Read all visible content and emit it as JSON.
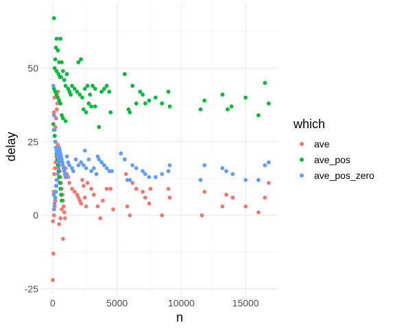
{
  "chart_data": {
    "type": "scatter",
    "xlabel": "n",
    "ylabel": "delay",
    "xlim": [
      -900,
      17500
    ],
    "ylim": [
      -27,
      72
    ],
    "x_ticks": [
      0,
      5000,
      10000,
      15000
    ],
    "x_tick_labels": [
      "0",
      "5000",
      "10000",
      "15000"
    ],
    "y_ticks": [
      -25,
      0,
      25,
      50
    ],
    "y_tick_labels": [
      "-25",
      "0",
      "25",
      "50"
    ],
    "grid": true,
    "legend": {
      "title": "which",
      "position": "right"
    },
    "series": [
      {
        "name": "ave",
        "color": "#F8766D",
        "points": [
          [
            0,
            -22
          ],
          [
            50,
            -13
          ],
          [
            20,
            -2
          ],
          [
            100,
            0
          ],
          [
            150,
            3
          ],
          [
            200,
            5
          ],
          [
            80,
            8
          ],
          [
            250,
            10
          ],
          [
            300,
            12
          ],
          [
            120,
            14
          ],
          [
            180,
            16
          ],
          [
            220,
            18
          ],
          [
            280,
            20
          ],
          [
            350,
            22
          ],
          [
            400,
            24
          ],
          [
            160,
            27
          ],
          [
            210,
            30
          ],
          [
            260,
            33
          ],
          [
            310,
            36
          ],
          [
            360,
            38
          ],
          [
            410,
            42
          ],
          [
            90,
            35
          ],
          [
            140,
            40
          ],
          [
            450,
            19
          ],
          [
            500,
            17
          ],
          [
            550,
            15
          ],
          [
            600,
            13
          ],
          [
            650,
            11
          ],
          [
            700,
            9
          ],
          [
            750,
            7
          ],
          [
            800,
            5
          ],
          [
            850,
            3
          ],
          [
            900,
            1
          ],
          [
            950,
            -1
          ],
          [
            800,
            -8
          ],
          [
            500,
            -3
          ],
          [
            600,
            -1
          ],
          [
            700,
            2
          ],
          [
            1000,
            16
          ],
          [
            1100,
            14
          ],
          [
            1200,
            13
          ],
          [
            1300,
            11
          ],
          [
            1500,
            9
          ],
          [
            1700,
            8
          ],
          [
            1900,
            7
          ],
          [
            2000,
            6
          ],
          [
            2100,
            5
          ],
          [
            2200,
            4
          ],
          [
            2300,
            12
          ],
          [
            2400,
            10
          ],
          [
            2500,
            6
          ],
          [
            2600,
            3
          ],
          [
            2700,
            11
          ],
          [
            3000,
            9
          ],
          [
            3200,
            7
          ],
          [
            3500,
            3
          ],
          [
            3700,
            -1
          ],
          [
            3900,
            5
          ],
          [
            4200,
            9
          ],
          [
            4500,
            9
          ],
          [
            4700,
            2
          ],
          [
            5700,
            14
          ],
          [
            5800,
            3
          ],
          [
            6000,
            0
          ],
          [
            6200,
            11
          ],
          [
            6500,
            9
          ],
          [
            7000,
            8
          ],
          [
            7200,
            6
          ],
          [
            7500,
            4
          ],
          [
            7600,
            9
          ],
          [
            8500,
            0
          ],
          [
            9000,
            9
          ],
          [
            9100,
            6
          ],
          [
            11600,
            0
          ],
          [
            11800,
            8
          ],
          [
            13200,
            3
          ],
          [
            13500,
            7
          ],
          [
            14000,
            6
          ],
          [
            15000,
            3
          ],
          [
            16000,
            1
          ],
          [
            16500,
            6
          ],
          [
            16800,
            11
          ]
        ]
      },
      {
        "name": "ave_pos",
        "color": "#00BA38",
        "points": [
          [
            100,
            67
          ],
          [
            300,
            60
          ],
          [
            600,
            60
          ],
          [
            250,
            57
          ],
          [
            400,
            56
          ],
          [
            200,
            53
          ],
          [
            500,
            52
          ],
          [
            700,
            52
          ],
          [
            150,
            50
          ],
          [
            300,
            49
          ],
          [
            450,
            48
          ],
          [
            550,
            47
          ],
          [
            650,
            47
          ],
          [
            800,
            49
          ],
          [
            900,
            46
          ],
          [
            1000,
            44
          ],
          [
            1100,
            48
          ],
          [
            1200,
            43
          ],
          [
            1300,
            42
          ],
          [
            1400,
            41
          ],
          [
            100,
            43
          ],
          [
            200,
            42
          ],
          [
            300,
            41
          ],
          [
            400,
            40
          ],
          [
            500,
            39
          ],
          [
            600,
            38
          ],
          [
            700,
            34
          ],
          [
            800,
            33
          ],
          [
            1000,
            32
          ],
          [
            50,
            31
          ],
          [
            100,
            29
          ],
          [
            150,
            27
          ],
          [
            200,
            25
          ],
          [
            250,
            23
          ],
          [
            300,
            21
          ],
          [
            350,
            19
          ],
          [
            400,
            17
          ],
          [
            450,
            15
          ],
          [
            500,
            13
          ],
          [
            550,
            11
          ],
          [
            600,
            9
          ],
          [
            650,
            7
          ],
          [
            700,
            5
          ],
          [
            2000,
            52
          ],
          [
            2200,
            53
          ],
          [
            1500,
            44
          ],
          [
            1700,
            43
          ],
          [
            1900,
            42
          ],
          [
            2100,
            41
          ],
          [
            2300,
            40
          ],
          [
            2500,
            43
          ],
          [
            2700,
            44
          ],
          [
            2900,
            41
          ],
          [
            3100,
            44
          ],
          [
            3300,
            43
          ],
          [
            3600,
            30
          ],
          [
            3800,
            42
          ],
          [
            4000,
            43
          ],
          [
            4200,
            44
          ],
          [
            4400,
            42
          ],
          [
            2400,
            36
          ],
          [
            2600,
            35
          ],
          [
            2800,
            38
          ],
          [
            3000,
            37
          ],
          [
            3300,
            37
          ],
          [
            4500,
            35
          ],
          [
            5600,
            48
          ],
          [
            5900,
            36
          ],
          [
            6000,
            35
          ],
          [
            6200,
            44
          ],
          [
            6500,
            38
          ],
          [
            6800,
            42
          ],
          [
            7000,
            41
          ],
          [
            7200,
            38
          ],
          [
            7500,
            39
          ],
          [
            8000,
            40
          ],
          [
            8500,
            38
          ],
          [
            9000,
            42
          ],
          [
            9100,
            37
          ],
          [
            11500,
            36
          ],
          [
            11800,
            39
          ],
          [
            13200,
            41
          ],
          [
            13600,
            36
          ],
          [
            13900,
            37
          ],
          [
            15000,
            40
          ],
          [
            16000,
            34
          ],
          [
            16500,
            45
          ],
          [
            16800,
            38
          ]
        ]
      },
      {
        "name": "ave_pos_zero",
        "color": "#619CFF",
        "points": [
          [
            50,
            44
          ],
          [
            100,
            34
          ],
          [
            150,
            29
          ],
          [
            200,
            25
          ],
          [
            250,
            23
          ],
          [
            300,
            22
          ],
          [
            350,
            21
          ],
          [
            400,
            20
          ],
          [
            450,
            19
          ],
          [
            500,
            23
          ],
          [
            550,
            22
          ],
          [
            600,
            21
          ],
          [
            650,
            20
          ],
          [
            700,
            19
          ],
          [
            750,
            18
          ],
          [
            800,
            17
          ],
          [
            850,
            16
          ],
          [
            900,
            15
          ],
          [
            950,
            14
          ],
          [
            1000,
            13
          ],
          [
            100,
            2
          ],
          [
            150,
            4
          ],
          [
            200,
            6
          ],
          [
            250,
            8
          ],
          [
            300,
            10
          ],
          [
            350,
            12
          ],
          [
            400,
            14
          ],
          [
            450,
            16
          ],
          [
            500,
            18
          ],
          [
            80,
            7
          ],
          [
            1100,
            20
          ],
          [
            1200,
            18
          ],
          [
            1300,
            17
          ],
          [
            1500,
            16
          ],
          [
            1600,
            15
          ],
          [
            1800,
            19
          ],
          [
            2000,
            17
          ],
          [
            2200,
            18
          ],
          [
            2400,
            17
          ],
          [
            2600,
            16
          ],
          [
            2800,
            19
          ],
          [
            3000,
            15
          ],
          [
            3200,
            16
          ],
          [
            3400,
            14
          ],
          [
            3600,
            19
          ],
          [
            3800,
            18
          ],
          [
            4000,
            17
          ],
          [
            4200,
            16
          ],
          [
            4400,
            15
          ],
          [
            4600,
            15
          ],
          [
            2500,
            22
          ],
          [
            3500,
            20
          ],
          [
            5300,
            21
          ],
          [
            5600,
            19
          ],
          [
            5800,
            12
          ],
          [
            6000,
            12
          ],
          [
            6200,
            17
          ],
          [
            6500,
            16
          ],
          [
            7000,
            15
          ],
          [
            7200,
            14
          ],
          [
            7500,
            13
          ],
          [
            8000,
            13
          ],
          [
            8500,
            14
          ],
          [
            9000,
            15
          ],
          [
            9100,
            17
          ],
          [
            11500,
            12
          ],
          [
            11800,
            17
          ],
          [
            13200,
            16
          ],
          [
            13500,
            15
          ],
          [
            14000,
            14
          ],
          [
            15000,
            12
          ],
          [
            16000,
            12
          ],
          [
            16500,
            17
          ],
          [
            16800,
            18
          ]
        ]
      }
    ]
  }
}
